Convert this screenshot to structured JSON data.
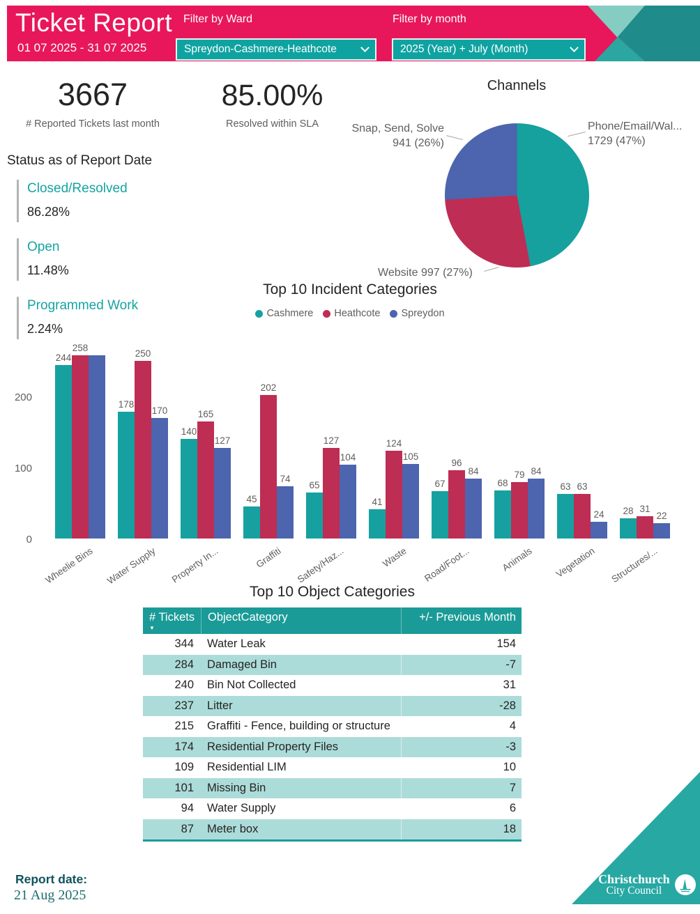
{
  "header": {
    "title": "Ticket Report",
    "date_range": "01 07 2025 - 31 07 2025",
    "ward_filter": {
      "label": "Filter by Ward",
      "value": "Spreydon-Cashmere-Heathcote"
    },
    "month_filter": {
      "label": "Filter by month",
      "value": "2025 (Year) + July (Month)"
    }
  },
  "kpis": {
    "reported": {
      "value": "3667",
      "label": "# Reported Tickets last month"
    },
    "sla": {
      "value": "85.00%",
      "label": "Resolved within SLA"
    }
  },
  "status": {
    "title": "Status as of Report Date",
    "items": [
      {
        "label": "Closed/Resolved",
        "value": "86.28%"
      },
      {
        "label": "Open",
        "value": "11.48%"
      },
      {
        "label": "Programmed Work",
        "value": "2.24%"
      }
    ]
  },
  "chart_data": [
    {
      "type": "pie",
      "title": "Channels",
      "start_angle_deg": 0,
      "direction": "clockwise",
      "slices": [
        {
          "label": "Phone/Email/Wal...",
          "value": 1729,
          "pct": 47,
          "color": "#16A09E",
          "label_side": "right",
          "label_lines": [
            "Phone/Email/Wal...",
            "1729 (47%)"
          ]
        },
        {
          "label": "Website",
          "value": 997,
          "pct": 27,
          "color": "#BE2D53",
          "label_side": "bottom",
          "label_lines": [
            "Website 997 (27%)"
          ]
        },
        {
          "label": "Snap, Send, Solve",
          "value": 941,
          "pct": 26,
          "color": "#4D64AE",
          "label_side": "left",
          "label_lines": [
            "Snap, Send, Solve",
            "941 (26%)"
          ]
        }
      ]
    },
    {
      "type": "bar",
      "title": "Top 10 Incident Categories",
      "legend_position": "top",
      "grid": false,
      "yticks": [
        0,
        100,
        200
      ],
      "ylim": [
        0,
        278
      ],
      "categories": [
        "Wheelie Bins",
        "Water Supply",
        "Property In...",
        "Graffiti",
        "Safety/Haz...",
        "Waste",
        "Road/Foot...",
        "Animals",
        "Vegetation",
        "Structures/..."
      ],
      "series": [
        {
          "name": "Cashmere",
          "color": "#16A1A0",
          "values": [
            244,
            178,
            140,
            45,
            65,
            41,
            67,
            68,
            63,
            28
          ]
        },
        {
          "name": "Heathcote",
          "color": "#BE2D53",
          "values": [
            258,
            250,
            165,
            202,
            127,
            124,
            96,
            79,
            63,
            31
          ]
        },
        {
          "name": "Spreydon",
          "color": "#4D64AE",
          "values": [
            258,
            170,
            127,
            74,
            104,
            105,
            84,
            84,
            24,
            22
          ]
        }
      ],
      "hidden_labels": [
        {
          "series": "Spreydon",
          "category": "Wheelie Bins"
        }
      ]
    }
  ],
  "table": {
    "title": "Top 10 Object Categories",
    "columns": [
      "# Tickets",
      "ObjectCategory",
      "+/- Previous Month"
    ],
    "sort_column": "# Tickets",
    "sort_direction": "descending",
    "rows": [
      {
        "tickets": "344",
        "category": "Water Leak",
        "delta": "154"
      },
      {
        "tickets": "284",
        "category": "Damaged Bin",
        "delta": "-7"
      },
      {
        "tickets": "240",
        "category": "Bin Not Collected",
        "delta": "31"
      },
      {
        "tickets": "237",
        "category": "Litter",
        "delta": "-28"
      },
      {
        "tickets": "215",
        "category": "Graffiti - Fence, building or structure",
        "delta": "4"
      },
      {
        "tickets": "174",
        "category": "Residential Property Files",
        "delta": "-3"
      },
      {
        "tickets": "109",
        "category": "Residential LIM",
        "delta": "10"
      },
      {
        "tickets": "101",
        "category": "Missing Bin",
        "delta": "7"
      },
      {
        "tickets": "94",
        "category": "Water Supply",
        "delta": "6"
      },
      {
        "tickets": "87",
        "category": "Meter box",
        "delta": "18"
      }
    ]
  },
  "footer": {
    "report_date_label": "Report date:",
    "report_date": "21 Aug 2025"
  },
  "logo": {
    "line1": "Christchurch",
    "line2": "City Council"
  },
  "colors": {
    "brand_pink": "#E8175B",
    "accent_teal": "#0EA3A1",
    "decor_mint": "#85CCC2",
    "decor_dark_teal": "#1F8B8A",
    "decor_mid_teal": "#2BA6A0",
    "table_header_teal": "#1A9B97",
    "table_row_alt": "#ACDCD9",
    "status_label_teal": "#14A5A1",
    "text_dark": "#252423",
    "text_gray": "#605E5C",
    "logo_triangle_teal": "#27A8A3"
  }
}
